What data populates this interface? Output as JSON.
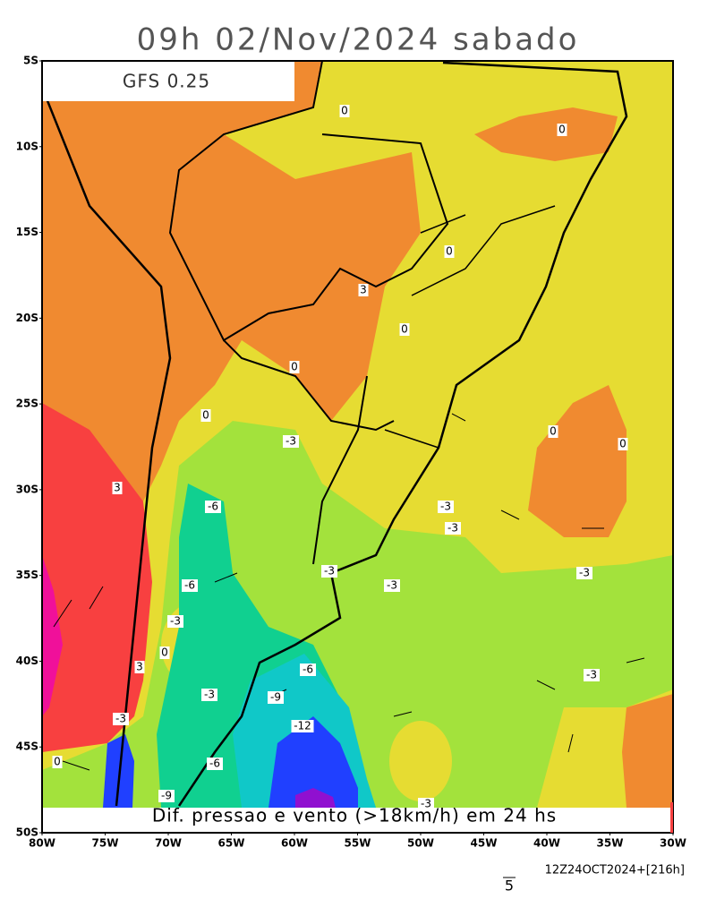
{
  "title": "09h 02/Nov/2024 sabado",
  "model": "GFS 0.25",
  "caption": "Dif. pressao e vento (>18km/h) em 24 hs",
  "lat_labels": [
    "5S",
    "10S",
    "15S",
    "20S",
    "25S",
    "30S",
    "35S",
    "40S",
    "45S",
    "50S"
  ],
  "lon_labels": [
    "80W",
    "75W",
    "70W",
    "65W",
    "60W",
    "55W",
    "50W",
    "45W",
    "40W",
    "35W",
    "30W"
  ],
  "contour_labels": [
    "0",
    "0",
    "0",
    "3",
    "0",
    "0",
    "0",
    "3",
    "0",
    "0",
    "-3",
    "-6",
    "-3",
    "-3",
    "-3",
    "-3",
    "-3",
    "-6",
    "-3",
    "0",
    "3",
    "-6",
    "-3",
    "-3",
    "-9",
    "-12",
    "-3",
    "0",
    "-6",
    "-9",
    "-3"
  ],
  "vector_scale": "5",
  "run_info": "12Z24OCT2024+[216h]"
}
